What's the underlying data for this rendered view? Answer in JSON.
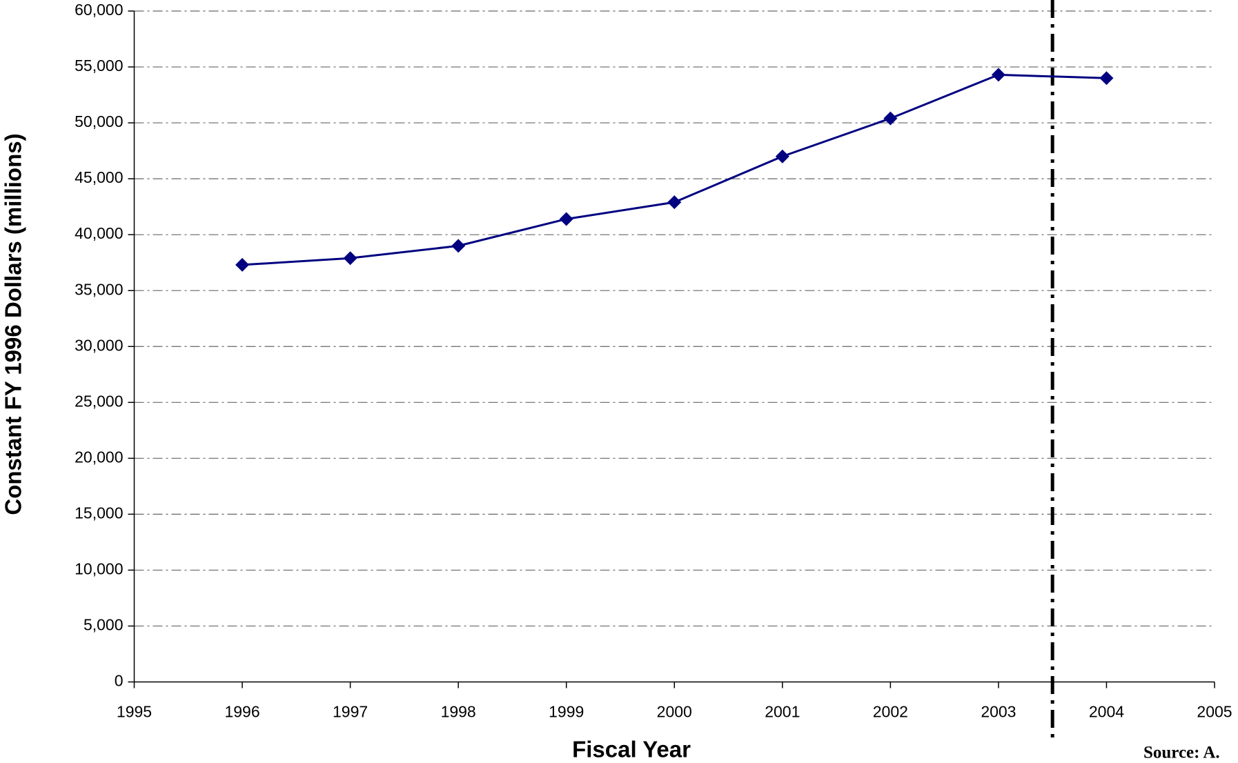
{
  "chart_data": {
    "type": "line",
    "x_label": "Fiscal Year",
    "y_label": "Constant FY 1996 Dollars (millions)",
    "source": "Source: A.",
    "x": [
      1996,
      1997,
      1998,
      1999,
      2000,
      2001,
      2002,
      2003,
      2004
    ],
    "values": [
      37300,
      37900,
      39000,
      41400,
      42900,
      47000,
      50400,
      54300,
      54000
    ],
    "color": "#000080",
    "xlim": [
      1995,
      2005
    ],
    "xticks": [
      1995,
      1996,
      1997,
      1998,
      1999,
      2000,
      2001,
      2002,
      2003,
      2004,
      2005
    ],
    "ylim": [
      0,
      60000
    ],
    "yticks": [
      0,
      {
        "value": 5000,
        "label": "5,000"
      },
      {
        "value": 10000,
        "label": "10,000"
      },
      {
        "value": 15000,
        "label": "15,000"
      },
      {
        "value": 20000,
        "label": "20,000"
      },
      {
        "value": 25000,
        "label": "25,000"
      },
      {
        "value": 30000,
        "label": "30,000"
      },
      {
        "value": 35000,
        "label": "35,000"
      },
      {
        "value": 40000,
        "label": "40,000"
      },
      {
        "value": 45000,
        "label": "45,000"
      },
      {
        "value": 50000,
        "label": "50,000"
      },
      {
        "value": 55000,
        "label": "55,000"
      },
      {
        "value": 60000,
        "label": "60,000"
      }
    ],
    "grid": true,
    "reference_line_x": 2003.5
  }
}
